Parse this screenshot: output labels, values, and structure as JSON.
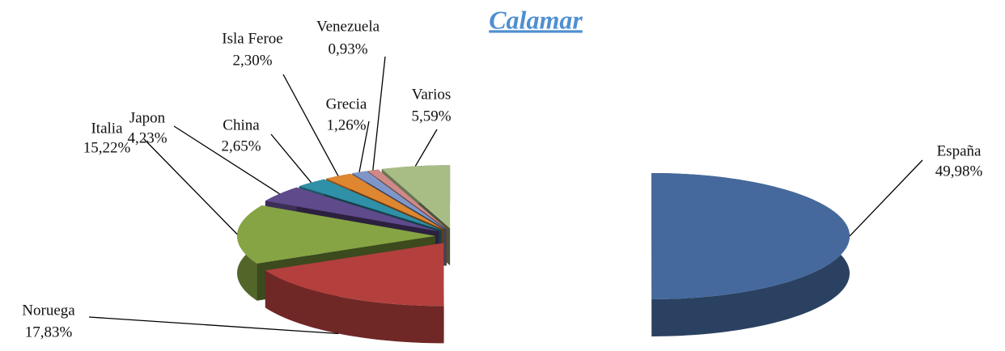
{
  "chart_data": {
    "type": "pie3d",
    "title": "Calamar",
    "categories": [
      "España",
      "Noruega",
      "Italia",
      "Japon",
      "China",
      "Isla Feroe",
      "Grecia",
      "Venezuela",
      "Varios"
    ],
    "values": [
      49.98,
      17.83,
      15.22,
      4.23,
      2.65,
      2.3,
      1.26,
      0.93,
      5.59
    ],
    "value_labels": [
      "49,98%",
      "17,83%",
      "15,22%",
      "4,23%",
      "2,65%",
      "2,30%",
      "1,26%",
      "0,93%",
      "5,59%"
    ],
    "colors": [
      "#45699c",
      "#b3403d",
      "#86a443",
      "#5f4a8c",
      "#2f90a8",
      "#de8630",
      "#7f97c8",
      "#cf8a88",
      "#a8bd86"
    ]
  }
}
